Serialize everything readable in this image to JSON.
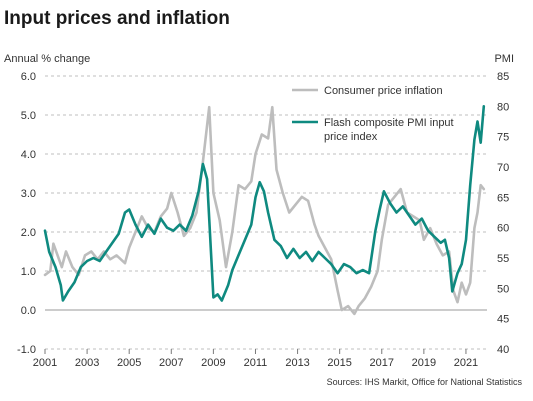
{
  "chart_data": {
    "type": "line",
    "title": "Input prices and inflation",
    "y_left_label": "Annual % change",
    "y_right_label": "PMI",
    "source": "Sources: IHS Markit, Office for National Statistics",
    "x_range": [
      2001.0,
      2022.0
    ],
    "y_left_range": [
      -1.0,
      6.0
    ],
    "y_right_range": [
      40,
      85
    ],
    "y_left_ticks": [
      "-1.0",
      "0.0",
      "1.0",
      "2.0",
      "3.0",
      "4.0",
      "5.0",
      "6.0"
    ],
    "y_right_ticks": [
      "40",
      "45",
      "50",
      "55",
      "60",
      "65",
      "70",
      "75",
      "80",
      "85"
    ],
    "x_ticks": [
      "2001",
      "2003",
      "2005",
      "2007",
      "2009",
      "2011",
      "2013",
      "2015",
      "2017",
      "2019",
      "2021"
    ],
    "grid": "horizontal dashed",
    "legend_position": "top-right",
    "series": [
      {
        "name": "Consumer price inflation",
        "axis": "left",
        "color": "#bdbdbd",
        "points": [
          [
            2001.0,
            0.9
          ],
          [
            2001.25,
            1.0
          ],
          [
            2001.4,
            1.7
          ],
          [
            2001.6,
            1.4
          ],
          [
            2001.8,
            1.1
          ],
          [
            2002.0,
            1.5
          ],
          [
            2002.3,
            1.1
          ],
          [
            2002.6,
            0.9
          ],
          [
            2002.9,
            1.4
          ],
          [
            2003.2,
            1.5
          ],
          [
            2003.5,
            1.3
          ],
          [
            2003.8,
            1.5
          ],
          [
            2004.1,
            1.3
          ],
          [
            2004.4,
            1.4
          ],
          [
            2004.8,
            1.2
          ],
          [
            2005.0,
            1.6
          ],
          [
            2005.3,
            2.0
          ],
          [
            2005.6,
            2.4
          ],
          [
            2005.9,
            2.1
          ],
          [
            2006.2,
            2.0
          ],
          [
            2006.5,
            2.4
          ],
          [
            2006.8,
            2.6
          ],
          [
            2007.0,
            3.0
          ],
          [
            2007.3,
            2.5
          ],
          [
            2007.6,
            1.9
          ],
          [
            2007.9,
            2.1
          ],
          [
            2008.2,
            2.5
          ],
          [
            2008.5,
            3.8
          ],
          [
            2008.8,
            5.2
          ],
          [
            2009.0,
            3.0
          ],
          [
            2009.3,
            2.3
          ],
          [
            2009.6,
            1.1
          ],
          [
            2009.9,
            2.0
          ],
          [
            2010.2,
            3.2
          ],
          [
            2010.5,
            3.1
          ],
          [
            2010.8,
            3.3
          ],
          [
            2011.0,
            4.0
          ],
          [
            2011.3,
            4.5
          ],
          [
            2011.6,
            4.4
          ],
          [
            2011.8,
            5.2
          ],
          [
            2012.0,
            3.6
          ],
          [
            2012.3,
            3.0
          ],
          [
            2012.6,
            2.5
          ],
          [
            2012.9,
            2.7
          ],
          [
            2013.2,
            2.9
          ],
          [
            2013.5,
            2.8
          ],
          [
            2013.8,
            2.2
          ],
          [
            2014.0,
            1.9
          ],
          [
            2014.3,
            1.6
          ],
          [
            2014.6,
            1.3
          ],
          [
            2014.9,
            0.5
          ],
          [
            2015.1,
            0.0
          ],
          [
            2015.4,
            0.1
          ],
          [
            2015.7,
            -0.1
          ],
          [
            2015.9,
            0.1
          ],
          [
            2016.2,
            0.3
          ],
          [
            2016.5,
            0.6
          ],
          [
            2016.8,
            1.0
          ],
          [
            2017.0,
            1.8
          ],
          [
            2017.3,
            2.7
          ],
          [
            2017.6,
            2.9
          ],
          [
            2017.9,
            3.1
          ],
          [
            2018.2,
            2.5
          ],
          [
            2018.5,
            2.4
          ],
          [
            2018.8,
            2.3
          ],
          [
            2019.0,
            1.8
          ],
          [
            2019.3,
            2.1
          ],
          [
            2019.6,
            1.7
          ],
          [
            2019.9,
            1.4
          ],
          [
            2020.2,
            1.5
          ],
          [
            2020.4,
            0.5
          ],
          [
            2020.6,
            0.2
          ],
          [
            2020.8,
            0.7
          ],
          [
            2021.0,
            0.4
          ],
          [
            2021.2,
            0.7
          ],
          [
            2021.4,
            2.1
          ],
          [
            2021.55,
            2.5
          ],
          [
            2021.7,
            3.2
          ],
          [
            2021.85,
            3.1
          ]
        ]
      },
      {
        "name": "Flash composite PMI input price index",
        "axis": "right",
        "color": "#0f8a80",
        "points": [
          [
            2001.0,
            59.5
          ],
          [
            2001.2,
            56.0
          ],
          [
            2001.5,
            53.5
          ],
          [
            2001.75,
            50.5
          ],
          [
            2001.85,
            48.0
          ],
          [
            2002.1,
            49.5
          ],
          [
            2002.4,
            51.0
          ],
          [
            2002.7,
            53.5
          ],
          [
            2003.0,
            54.5
          ],
          [
            2003.3,
            55.0
          ],
          [
            2003.6,
            54.5
          ],
          [
            2003.9,
            56.0
          ],
          [
            2004.2,
            57.5
          ],
          [
            2004.5,
            59.0
          ],
          [
            2004.8,
            62.5
          ],
          [
            2005.0,
            63.0
          ],
          [
            2005.3,
            60.5
          ],
          [
            2005.6,
            58.5
          ],
          [
            2005.9,
            60.5
          ],
          [
            2006.2,
            59.0
          ],
          [
            2006.5,
            61.5
          ],
          [
            2006.8,
            60.0
          ],
          [
            2007.1,
            59.5
          ],
          [
            2007.4,
            60.5
          ],
          [
            2007.7,
            59.5
          ],
          [
            2008.0,
            62.0
          ],
          [
            2008.3,
            66.0
          ],
          [
            2008.5,
            70.5
          ],
          [
            2008.7,
            68.0
          ],
          [
            2008.9,
            55.0
          ],
          [
            2009.0,
            48.5
          ],
          [
            2009.2,
            49.0
          ],
          [
            2009.4,
            48.0
          ],
          [
            2009.7,
            50.5
          ],
          [
            2009.9,
            53.0
          ],
          [
            2010.2,
            55.5
          ],
          [
            2010.5,
            58.0
          ],
          [
            2010.8,
            60.5
          ],
          [
            2011.0,
            65.0
          ],
          [
            2011.2,
            67.5
          ],
          [
            2011.4,
            66.0
          ],
          [
            2011.6,
            62.5
          ],
          [
            2011.9,
            58.0
          ],
          [
            2012.2,
            57.0
          ],
          [
            2012.5,
            55.0
          ],
          [
            2012.8,
            56.5
          ],
          [
            2013.1,
            55.0
          ],
          [
            2013.4,
            56.0
          ],
          [
            2013.7,
            54.5
          ],
          [
            2014.0,
            56.0
          ],
          [
            2014.3,
            55.0
          ],
          [
            2014.6,
            54.0
          ],
          [
            2014.9,
            52.5
          ],
          [
            2015.2,
            54.0
          ],
          [
            2015.5,
            53.5
          ],
          [
            2015.8,
            52.5
          ],
          [
            2016.1,
            53.0
          ],
          [
            2016.4,
            52.5
          ],
          [
            2016.7,
            59.5
          ],
          [
            2016.9,
            63.0
          ],
          [
            2017.1,
            66.0
          ],
          [
            2017.4,
            64.0
          ],
          [
            2017.7,
            62.5
          ],
          [
            2018.0,
            63.5
          ],
          [
            2018.3,
            62.0
          ],
          [
            2018.6,
            60.5
          ],
          [
            2018.9,
            61.5
          ],
          [
            2019.2,
            59.5
          ],
          [
            2019.5,
            58.5
          ],
          [
            2019.8,
            57.5
          ],
          [
            2020.0,
            58.0
          ],
          [
            2020.2,
            55.0
          ],
          [
            2020.35,
            49.5
          ],
          [
            2020.6,
            52.5
          ],
          [
            2020.8,
            54.0
          ],
          [
            2021.0,
            58.0
          ],
          [
            2021.2,
            67.0
          ],
          [
            2021.4,
            74.5
          ],
          [
            2021.55,
            77.5
          ],
          [
            2021.7,
            74.0
          ],
          [
            2021.85,
            80.0
          ]
        ]
      }
    ]
  }
}
